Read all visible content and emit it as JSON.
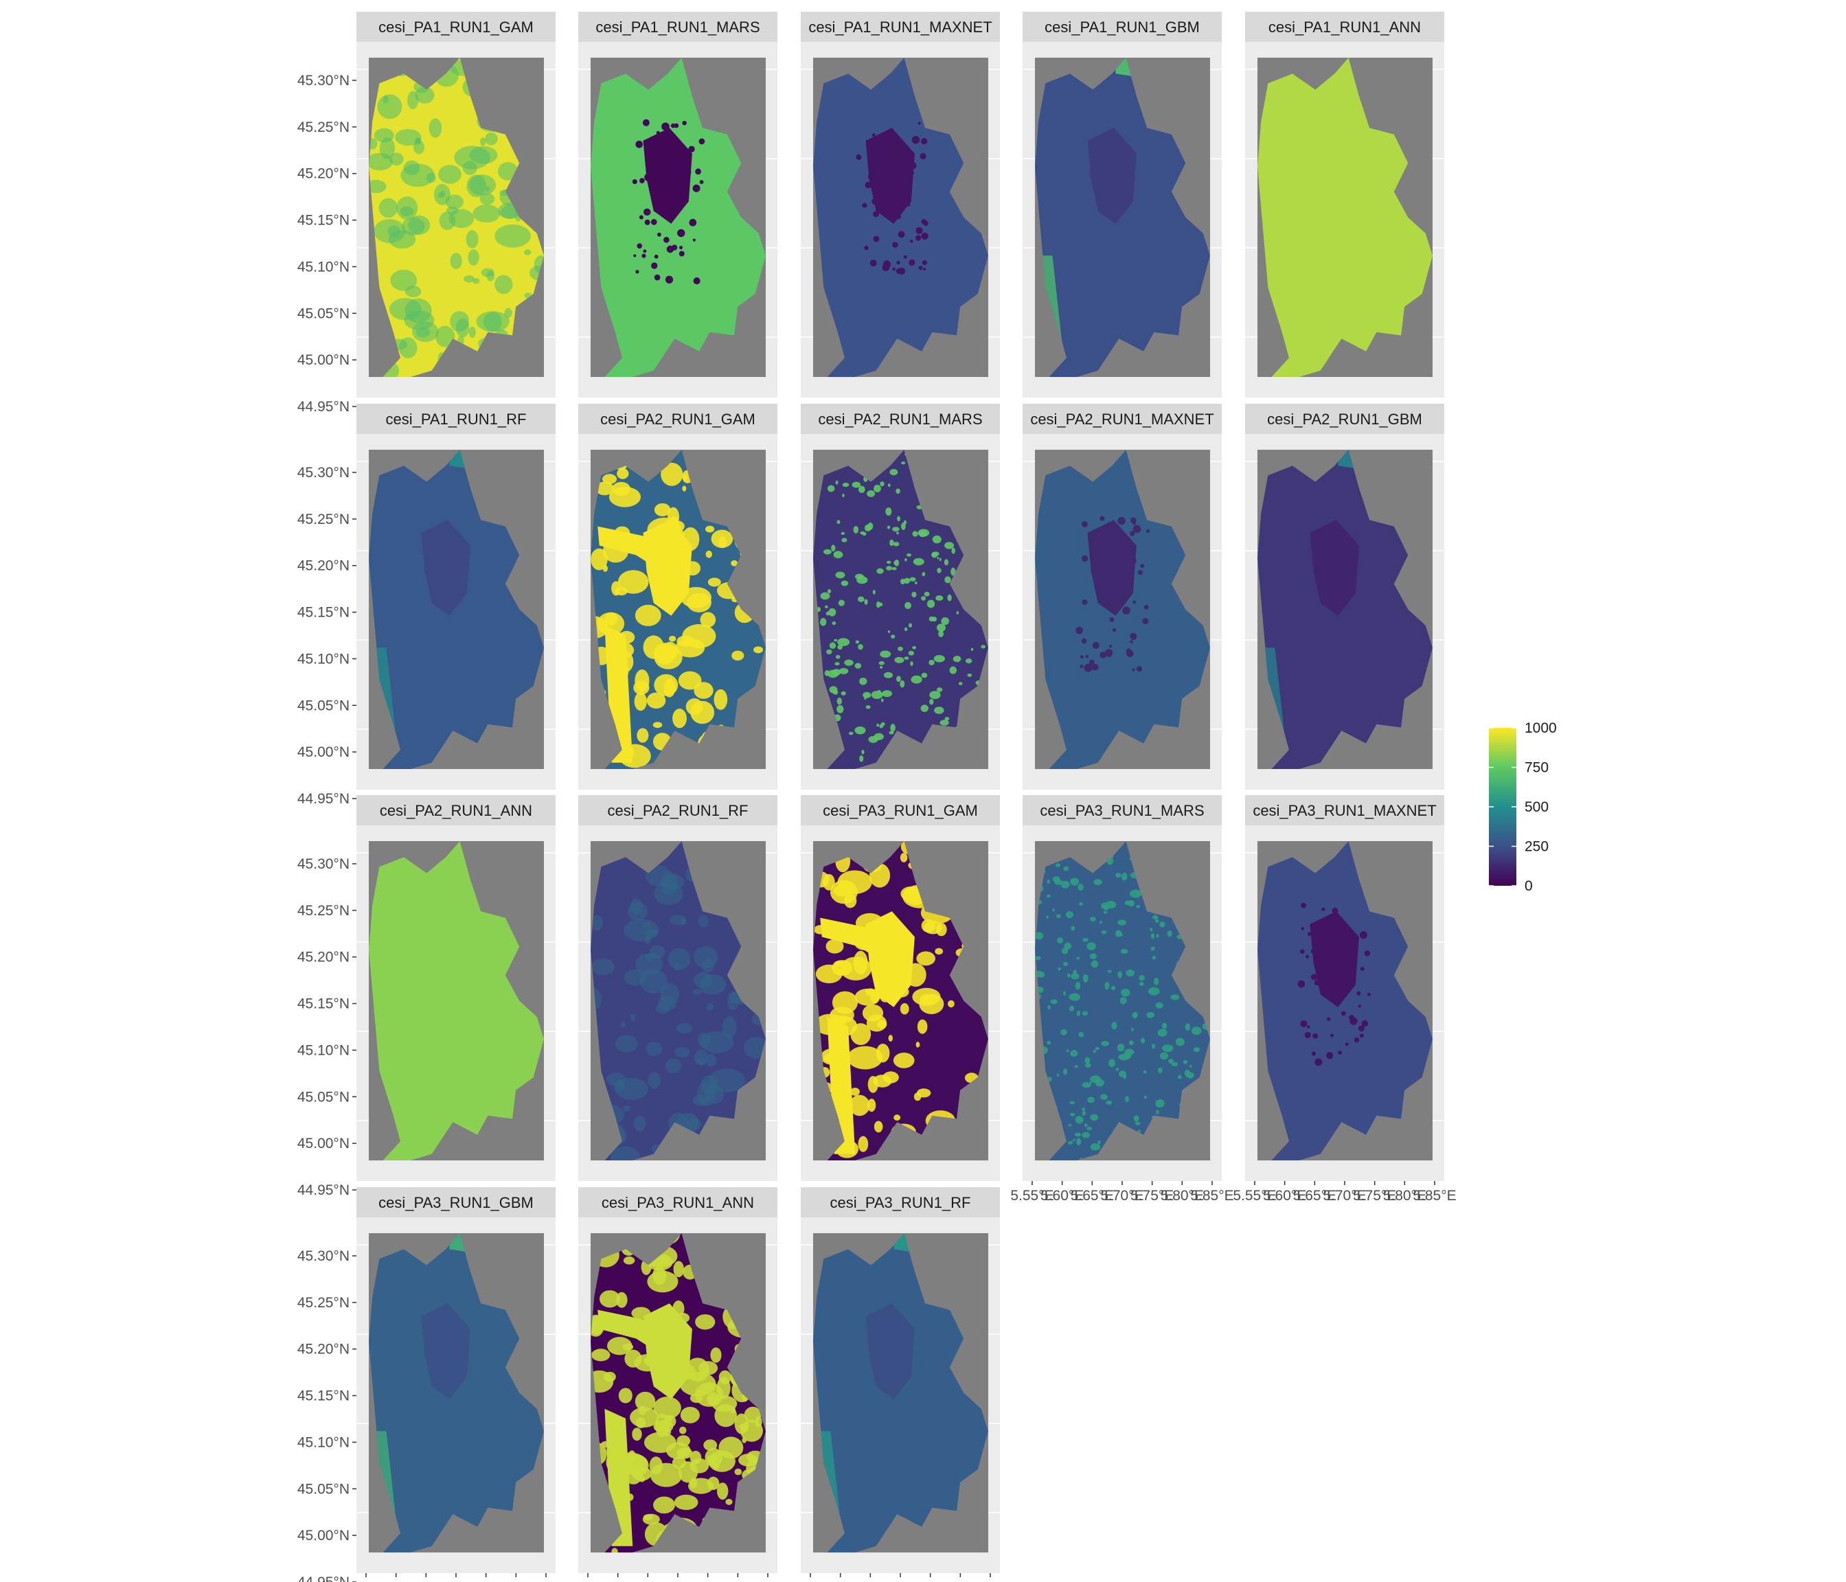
{
  "chart_data": {
    "type": "heatmap",
    "subtype": "faceted raster maps (ggplot2 facet_wrap)",
    "layout": {
      "ncol": 5,
      "nrow": 4
    },
    "panel_background": "#7f7f7f",
    "strip_background": "#d9d9d9",
    "plot_background": "#ebebeb",
    "colorscale": "viridis",
    "colorscale_stops": [
      "#440154",
      "#3b528b",
      "#21908c",
      "#5dc963",
      "#fde725"
    ],
    "legend": {
      "position": "right",
      "min": 0,
      "max": 1000,
      "ticks": [
        "0",
        "250",
        "500",
        "750",
        "1000"
      ]
    },
    "y_ticks": [
      "45.30°N",
      "45.25°N",
      "45.20°N",
      "45.15°N",
      "45.10°N",
      "45.05°N",
      "45.00°N",
      "44.95°N"
    ],
    "x_ticks": [
      "5.55°E",
      "5.60°E",
      "5.65°E",
      "5.70°E",
      "5.75°E",
      "5.80°E",
      "5.85°E"
    ],
    "y_range": [
      44.95,
      45.3
    ],
    "x_range": [
      5.55,
      5.85
    ],
    "facets": [
      {
        "label": "cesi_PA1_RUN1_GAM",
        "base_value": 960,
        "secondary_value": 700,
        "pattern": "mottled"
      },
      {
        "label": "cesi_PA1_RUN1_MARS",
        "base_value": 740,
        "secondary_value": 20,
        "pattern": "city-dark"
      },
      {
        "label": "cesi_PA1_RUN1_MAXNET",
        "base_value": 250,
        "secondary_value": 60,
        "pattern": "city-dark"
      },
      {
        "label": "cesi_PA1_RUN1_GBM",
        "base_value": 240,
        "secondary_value": 680,
        "pattern": "edge-bright"
      },
      {
        "label": "cesi_PA1_RUN1_ANN",
        "base_value": 880,
        "secondary_value": 880,
        "pattern": "uniform"
      },
      {
        "label": "cesi_PA1_RUN1_RF",
        "base_value": 280,
        "secondary_value": 470,
        "pattern": "edge-bright"
      },
      {
        "label": "cesi_PA2_RUN1_GAM",
        "base_value": 330,
        "secondary_value": 990,
        "pattern": "city-bright"
      },
      {
        "label": "cesi_PA2_RUN1_MARS",
        "base_value": 160,
        "secondary_value": 750,
        "pattern": "speckled"
      },
      {
        "label": "cesi_PA2_RUN1_MAXNET",
        "base_value": 300,
        "secondary_value": 120,
        "pattern": "city-dark"
      },
      {
        "label": "cesi_PA2_RUN1_GBM",
        "base_value": 170,
        "secondary_value": 420,
        "pattern": "edge-bright"
      },
      {
        "label": "cesi_PA2_RUN1_ANN",
        "base_value": 820,
        "secondary_value": 820,
        "pattern": "uniform"
      },
      {
        "label": "cesi_PA2_RUN1_RF",
        "base_value": 200,
        "secondary_value": 330,
        "pattern": "mottled"
      },
      {
        "label": "cesi_PA3_RUN1_GAM",
        "base_value": 30,
        "secondary_value": 990,
        "pattern": "city-bright"
      },
      {
        "label": "cesi_PA3_RUN1_MARS",
        "base_value": 300,
        "secondary_value": 560,
        "pattern": "speckled"
      },
      {
        "label": "cesi_PA3_RUN1_MAXNET",
        "base_value": 230,
        "secondary_value": 60,
        "pattern": "city-dark"
      },
      {
        "label": "cesi_PA3_RUN1_GBM",
        "base_value": 310,
        "secondary_value": 620,
        "pattern": "edge-bright"
      },
      {
        "label": "cesi_PA3_RUN1_ANN",
        "base_value": 10,
        "secondary_value": 920,
        "pattern": "binary"
      },
      {
        "label": "cesi_PA3_RUN1_RF",
        "base_value": 300,
        "secondary_value": 520,
        "pattern": "edge-bright"
      }
    ],
    "x_axis_shown_on": [
      "cesi_PA3_RUN1_MARS",
      "cesi_PA3_RUN1_MAXNET",
      "cesi_PA3_RUN1_GBM",
      "cesi_PA3_RUN1_ANN",
      "cesi_PA3_RUN1_RF"
    ],
    "title": "",
    "xlabel": "",
    "ylabel": ""
  }
}
